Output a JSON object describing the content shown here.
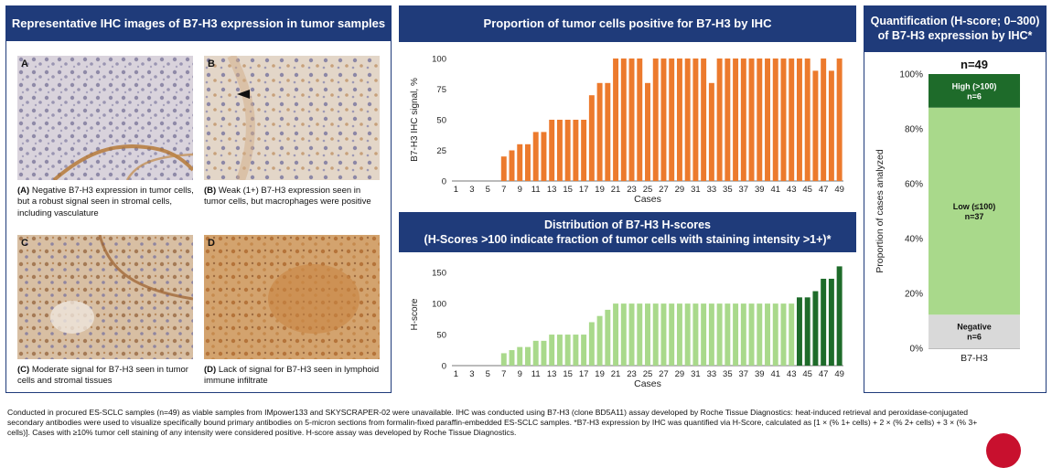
{
  "left_panel": {
    "title": "Representative IHC images of B7-H3 expression in tumor samples",
    "images": [
      {
        "tag": "A",
        "caption_tag": "(A)",
        "caption": " Negative B7-H3 expression in tumor cells, but a robust signal seen in stromal cells, including vasculature"
      },
      {
        "tag": "B",
        "caption_tag": "(B)",
        "caption": " Weak (1+) B7-H3 expression seen in tumor cells, but macrophages were positive"
      },
      {
        "tag": "C",
        "caption_tag": "(C)",
        "caption": " Moderate signal for B7-H3 seen in tumor cells and stromal tissues"
      },
      {
        "tag": "D",
        "caption_tag": "(D)",
        "caption": " Lack of signal for B7-H3 seen in lymphoid immune infiltrate"
      }
    ]
  },
  "chart_data": [
    {
      "type": "bar",
      "title": "Proportion of tumor cells positive for B7-H3 by IHC",
      "xlabel": "Cases",
      "ylabel": "B7-H3 IHC signal, %",
      "ylim": [
        0,
        100
      ],
      "yticks": [
        0,
        25,
        50,
        75,
        100
      ],
      "x_tick_labels": [
        "1",
        "3",
        "5",
        "7",
        "9",
        "11",
        "13",
        "15",
        "17",
        "19",
        "21",
        "23",
        "25",
        "27",
        "29",
        "31",
        "33",
        "35",
        "37",
        "39",
        "41",
        "43",
        "45",
        "47",
        "49"
      ],
      "colors": {
        "bar": "#ec7a2d"
      },
      "categories": [
        1,
        2,
        3,
        4,
        5,
        6,
        7,
        8,
        9,
        10,
        11,
        12,
        13,
        14,
        15,
        16,
        17,
        18,
        19,
        20,
        21,
        22,
        23,
        24,
        25,
        26,
        27,
        28,
        29,
        30,
        31,
        32,
        33,
        34,
        35,
        36,
        37,
        38,
        39,
        40,
        41,
        42,
        43,
        44,
        45,
        46,
        47,
        48,
        49
      ],
      "values": [
        0,
        0,
        0,
        0,
        0,
        0,
        20,
        25,
        30,
        30,
        40,
        40,
        50,
        50,
        50,
        50,
        50,
        70,
        80,
        80,
        100,
        100,
        100,
        100,
        80,
        100,
        100,
        100,
        100,
        100,
        100,
        100,
        80,
        100,
        100,
        100,
        100,
        100,
        100,
        100,
        100,
        100,
        100,
        100,
        100,
        90,
        100,
        90,
        100
      ]
    },
    {
      "type": "bar",
      "title": "Distribution of B7-H3 H-scores",
      "subtitle": "(H-Scores >100 indicate fraction of tumor cells with staining intensity >1+)*",
      "xlabel": "Cases",
      "ylabel": "H-score",
      "ylim": [
        0,
        165
      ],
      "yticks": [
        0,
        50,
        100,
        150
      ],
      "x_tick_labels": [
        "1",
        "3",
        "5",
        "7",
        "9",
        "11",
        "13",
        "15",
        "17",
        "19",
        "21",
        "23",
        "25",
        "27",
        "29",
        "31",
        "33",
        "35",
        "37",
        "39",
        "41",
        "43",
        "45",
        "47",
        "49"
      ],
      "colors": {
        "low": "#a9d98b",
        "high": "#1e6b2a"
      },
      "categories": [
        1,
        2,
        3,
        4,
        5,
        6,
        7,
        8,
        9,
        10,
        11,
        12,
        13,
        14,
        15,
        16,
        17,
        18,
        19,
        20,
        21,
        22,
        23,
        24,
        25,
        26,
        27,
        28,
        29,
        30,
        31,
        32,
        33,
        34,
        35,
        36,
        37,
        38,
        39,
        40,
        41,
        42,
        43,
        44,
        45,
        46,
        47,
        48,
        49
      ],
      "values": [
        0,
        0,
        0,
        0,
        0,
        0,
        20,
        25,
        30,
        30,
        40,
        40,
        50,
        50,
        50,
        50,
        50,
        70,
        80,
        90,
        100,
        100,
        100,
        100,
        100,
        100,
        100,
        100,
        100,
        100,
        100,
        100,
        100,
        100,
        100,
        100,
        100,
        100,
        100,
        100,
        100,
        100,
        100,
        110,
        110,
        120,
        140,
        140,
        160
      ]
    },
    {
      "type": "bar",
      "title": "Quantification (H-score; 0–300) of B7-H3 expression by IHC*",
      "ylabel": "Proportion of cases analyzed",
      "categories": [
        "B7-H3"
      ],
      "total_label": "n=49",
      "yticks": [
        "0%",
        "20%",
        "40%",
        "60%",
        "80%",
        "100%"
      ],
      "segments": [
        {
          "name": "Negative",
          "n_label": "n=6",
          "value": 6,
          "color": "#d9d9d9"
        },
        {
          "name": "Low (≤100)",
          "n_label": "n=37",
          "value": 37,
          "color": "#a9d98b"
        },
        {
          "name": "High (>100)",
          "n_label": "n=6",
          "value": 6,
          "color": "#1e6b2a"
        }
      ]
    }
  ],
  "footnote": "Conducted in procured ES-SCLC samples (n=49) as viable samples from IMpower133 and SKYSCRAPER-02 were unavailable. IHC was conducted using B7-H3 (clone BD5A11) assay developed by Roche Tissue Diagnostics: heat-induced retrieval and peroxidase-conjugated secondary antibodies were used to visualize specifically bound primary antibodies on 5-micron sections from formalin-fixed paraffin-embedded ES-SCLC samples. *B7-H3 expression by IHC was quantified via H-Score, calculated as [1 × (% 1+ cells) + 2 × (% 2+ cells) + 3 × (% 3+ cells)]. Cases with ≥10% tumor cell staining of any intensity were considered positive. H-score assay was developed by Roche Tissue Diagnostics.",
  "colors": {
    "header_bg": "#1f3b7a",
    "orange": "#ec7a2d",
    "light_green": "#a9d98b",
    "dark_green": "#1e6b2a",
    "grey": "#d9d9d9"
  }
}
